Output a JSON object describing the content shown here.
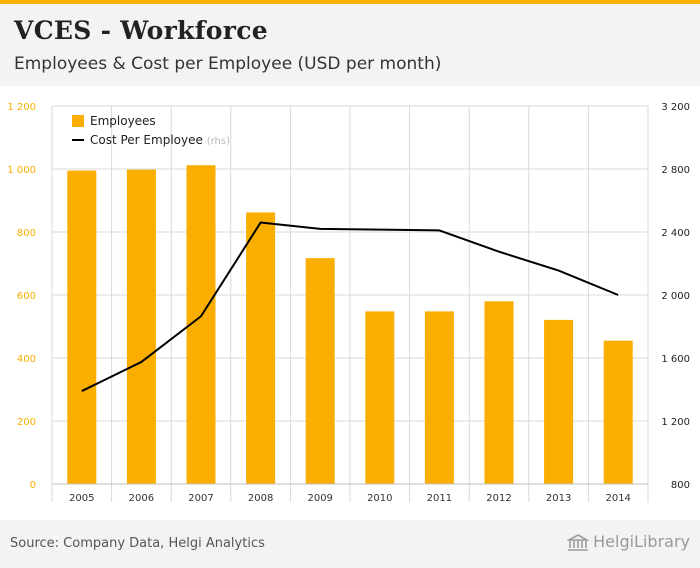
{
  "header": {
    "title": "VCES - Workforce",
    "subtitle": "Employees & Cost per Employee (USD per month)"
  },
  "footer": {
    "source": "Source: Company Data, Helgi Analytics",
    "brand": "HelgiLibrary"
  },
  "colors": {
    "bar": "#f9ae00",
    "line": "#000000",
    "left_axis_text": "#f9ae00",
    "grid": "#d9d9d9"
  },
  "chart_data": {
    "type": "bar",
    "categories": [
      "2005",
      "2006",
      "2007",
      "2008",
      "2009",
      "2010",
      "2011",
      "2012",
      "2013",
      "2014"
    ],
    "series": [
      {
        "name": "Employees",
        "type": "bar",
        "axis": "left",
        "values": [
          995,
          998,
          1012,
          862,
          717,
          548,
          548,
          580,
          521,
          455
        ]
      },
      {
        "name": "Cost Per Employee",
        "name_suffix": "(rhs)",
        "type": "line",
        "axis": "right",
        "values": [
          1390,
          1575,
          1865,
          2460,
          2420,
          2415,
          2410,
          2275,
          2155,
          2000
        ]
      }
    ],
    "y_left": {
      "min": 0,
      "max": 1200,
      "ticks": [
        0,
        200,
        400,
        600,
        800,
        1000,
        1200
      ],
      "tick_labels": [
        "0",
        "200",
        "400",
        "600",
        "800",
        "1 000",
        "1 200"
      ]
    },
    "y_right": {
      "min": 800,
      "max": 3200,
      "ticks": [
        800,
        1200,
        1600,
        2000,
        2400,
        2800,
        3200
      ],
      "tick_labels": [
        "800",
        "1 200",
        "1 600",
        "2 000",
        "2 400",
        "2 800",
        "3 200"
      ]
    },
    "legend": {
      "position": "top-left",
      "items": [
        {
          "label": "Employees",
          "suffix": ""
        },
        {
          "label": "Cost Per Employee",
          "suffix": "(rhs)"
        }
      ]
    },
    "grid": true
  }
}
